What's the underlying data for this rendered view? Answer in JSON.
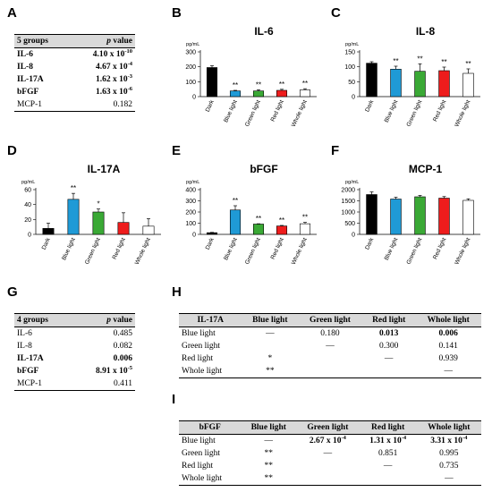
{
  "panels": {
    "A": "A",
    "B": "B",
    "C": "C",
    "D": "D",
    "E": "E",
    "F": "F",
    "G": "G",
    "H": "H",
    "I": "I"
  },
  "table_a": {
    "header": {
      "group": "5 groups",
      "p": "p",
      "value": "value"
    },
    "rows": [
      {
        "name": "IL-6",
        "base": "4.10 x 10",
        "exp": "-10",
        "bold": true
      },
      {
        "name": "IL-8",
        "base": "4.67 x 10",
        "exp": "-4",
        "bold": true
      },
      {
        "name": "IL-17A",
        "base": "1.62 x 10",
        "exp": "-3",
        "bold": true
      },
      {
        "name": "bFGF",
        "base": "1.63 x 10",
        "exp": "-6",
        "bold": true
      },
      {
        "name": "MCP-1",
        "base": "0.182",
        "exp": "",
        "bold": false
      }
    ]
  },
  "table_g": {
    "header": {
      "group": "4 groups",
      "p": "p",
      "value": "value"
    },
    "rows": [
      {
        "name": "IL-6",
        "base": "0.485",
        "exp": "",
        "bold": false
      },
      {
        "name": "IL-8",
        "base": "0.082",
        "exp": "",
        "bold": false
      },
      {
        "name": "IL-17A",
        "base": "0.006",
        "exp": "",
        "bold": true
      },
      {
        "name": "bFGF",
        "base": "8.91 x 10",
        "exp": "-5",
        "bold": true
      },
      {
        "name": "MCP-1",
        "base": "0.411",
        "exp": "",
        "bold": false
      }
    ]
  },
  "table_h": {
    "cols": [
      "IL-17A",
      "Blue light",
      "Green light",
      "Red light",
      "Whole light"
    ],
    "rows": [
      {
        "cells": [
          {
            "t": "Blue light"
          },
          {
            "t": "—"
          },
          {
            "t": "0.180"
          },
          {
            "t": "0.013",
            "b": true
          },
          {
            "t": "0.006",
            "b": true
          }
        ]
      },
      {
        "cells": [
          {
            "t": "Green light"
          },
          {
            "t": ""
          },
          {
            "t": "—"
          },
          {
            "t": "0.300"
          },
          {
            "t": "0.141"
          }
        ]
      },
      {
        "cells": [
          {
            "t": "Red light"
          },
          {
            "t": "*"
          },
          {
            "t": ""
          },
          {
            "t": "—"
          },
          {
            "t": "0.939"
          }
        ]
      },
      {
        "cells": [
          {
            "t": "Whole light"
          },
          {
            "t": "**"
          },
          {
            "t": ""
          },
          {
            "t": ""
          },
          {
            "t": "—"
          }
        ]
      }
    ]
  },
  "table_i": {
    "cols": [
      "bFGF",
      "Blue light",
      "Green light",
      "Red light",
      "Whole light"
    ],
    "rows": [
      {
        "cells": [
          {
            "t": "Blue light"
          },
          {
            "t": "—"
          },
          {
            "t": "2.67 x 10",
            "e": "-4",
            "b": true
          },
          {
            "t": "1.31 x 10",
            "e": "-4",
            "b": true
          },
          {
            "t": "3.31 x 10",
            "e": "-4",
            "b": true
          }
        ]
      },
      {
        "cells": [
          {
            "t": "Green light"
          },
          {
            "t": "**"
          },
          {
            "t": "—"
          },
          {
            "t": "0.851"
          },
          {
            "t": "0.995"
          }
        ]
      },
      {
        "cells": [
          {
            "t": "Red light"
          },
          {
            "t": "**"
          },
          {
            "t": ""
          },
          {
            "t": "—"
          },
          {
            "t": "0.735"
          }
        ]
      },
      {
        "cells": [
          {
            "t": "Whole light"
          },
          {
            "t": "**"
          },
          {
            "t": ""
          },
          {
            "t": ""
          },
          {
            "t": "—"
          }
        ]
      }
    ]
  },
  "colors": {
    "Dark": "#000000",
    "Blue light": "#1f9ad6",
    "Green light": "#3aa935",
    "Red light": "#ee1c1c",
    "Whole light": "#ffffff"
  },
  "chart_data": [
    {
      "id": "B",
      "type": "bar",
      "title": "IL-6",
      "unit": "pg/mL",
      "categories": [
        "Dark",
        "Blue light",
        "Green light",
        "Red light",
        "Whole light"
      ],
      "values": [
        195,
        38,
        38,
        42,
        45
      ],
      "errors": [
        12,
        4,
        8,
        7,
        8
      ],
      "sig": [
        "",
        "**",
        "**",
        "**",
        "**"
      ],
      "ylim": [
        0,
        300
      ],
      "yticks": [
        0,
        100,
        200,
        300
      ]
    },
    {
      "id": "C",
      "type": "bar",
      "title": "IL-8",
      "unit": "pg/mL",
      "categories": [
        "Dark",
        "Blue light",
        "Green light",
        "Red light",
        "Whole light"
      ],
      "values": [
        112,
        92,
        85,
        87,
        78
      ],
      "errors": [
        5,
        10,
        25,
        12,
        15
      ],
      "sig": [
        "",
        "**",
        "**",
        "**",
        "**"
      ],
      "ylim": [
        0,
        150
      ],
      "yticks": [
        0,
        50,
        100,
        150
      ]
    },
    {
      "id": "D",
      "type": "bar",
      "title": "IL-17A",
      "unit": "pg/mL",
      "categories": [
        "Dark",
        "Blue light",
        "Green light",
        "Red light",
        "Whole light"
      ],
      "values": [
        8,
        47,
        30,
        16,
        11
      ],
      "errors": [
        7,
        8,
        4,
        13,
        10
      ],
      "sig": [
        "",
        "**",
        "*",
        "",
        ""
      ],
      "ylim": [
        0,
        60
      ],
      "yticks": [
        0,
        20,
        40,
        60
      ]
    },
    {
      "id": "E",
      "type": "bar",
      "title": "bFGF",
      "unit": "pg/mL",
      "categories": [
        "Dark",
        "Blue light",
        "Green light",
        "Red light",
        "Whole light"
      ],
      "values": [
        15,
        218,
        92,
        75,
        95
      ],
      "errors": [
        3,
        38,
        3,
        5,
        12
      ],
      "sig": [
        "",
        "**",
        "**",
        "**",
        "**"
      ],
      "ylim": [
        0,
        400
      ],
      "yticks": [
        0,
        100,
        200,
        300,
        400
      ]
    },
    {
      "id": "F",
      "type": "bar",
      "title": "MCP-1",
      "unit": "pg/mL",
      "categories": [
        "Dark",
        "Blue light",
        "Green light",
        "Red light",
        "Whole light"
      ],
      "values": [
        1780,
        1580,
        1680,
        1620,
        1520
      ],
      "errors": [
        120,
        80,
        60,
        70,
        70
      ],
      "sig": [
        "",
        "",
        "",
        "",
        ""
      ],
      "ylim": [
        0,
        2000
      ],
      "yticks": [
        0,
        500,
        1000,
        1500,
        2000
      ]
    }
  ]
}
